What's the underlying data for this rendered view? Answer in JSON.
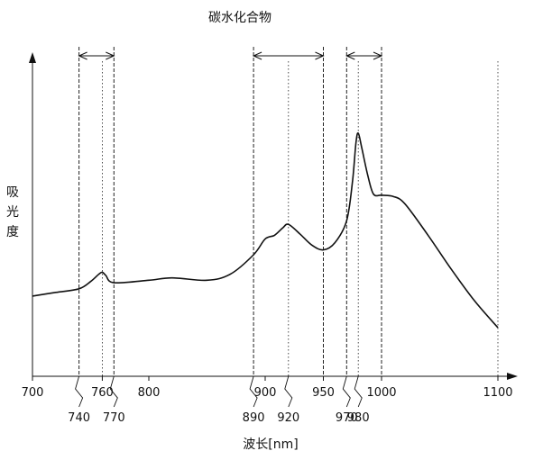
{
  "chart_data": {
    "type": "line",
    "title": "碳水化合物",
    "xlabel": "波长[nm]",
    "ylabel": "吸光度",
    "xlim": [
      700,
      1100
    ],
    "ticks_upper": [
      {
        "value": 700,
        "label": "700"
      },
      {
        "value": 760,
        "label": "760"
      },
      {
        "value": 800,
        "label": "800"
      },
      {
        "value": 900,
        "label": "900"
      },
      {
        "value": 950,
        "label": "950"
      },
      {
        "value": 1000,
        "label": "1000"
      },
      {
        "value": 1100,
        "label": "1100"
      }
    ],
    "ticks_lower": [
      {
        "value": 740,
        "label": "740"
      },
      {
        "value": 770,
        "label": "770"
      },
      {
        "value": 890,
        "label": "890"
      },
      {
        "value": 920,
        "label": "920"
      },
      {
        "value": 970,
        "label": "970"
      },
      {
        "value": 980,
        "label": "980"
      }
    ],
    "reference_lines": [
      {
        "x": 740,
        "style": "dashed"
      },
      {
        "x": 760,
        "style": "dotted"
      },
      {
        "x": 770,
        "style": "dashed"
      },
      {
        "x": 890,
        "style": "dashed"
      },
      {
        "x": 920,
        "style": "dotted"
      },
      {
        "x": 950,
        "style": "dashed"
      },
      {
        "x": 970,
        "style": "dashed"
      },
      {
        "x": 980,
        "style": "dotted"
      },
      {
        "x": 1000,
        "style": "dashed"
      },
      {
        "x": 1100,
        "style": "dotted"
      }
    ],
    "ranges": [
      {
        "from": 740,
        "to": 770
      },
      {
        "from": 890,
        "to": 950
      },
      {
        "from": 970,
        "to": 1000
      }
    ],
    "series": [
      {
        "points": [
          [
            700,
            0.33
          ],
          [
            720,
            0.345
          ],
          [
            740,
            0.36
          ],
          [
            750,
            0.39
          ],
          [
            757,
            0.42
          ],
          [
            760,
            0.428
          ],
          [
            763,
            0.415
          ],
          [
            770,
            0.385
          ],
          [
            800,
            0.395
          ],
          [
            820,
            0.405
          ],
          [
            850,
            0.395
          ],
          [
            870,
            0.42
          ],
          [
            890,
            0.5
          ],
          [
            900,
            0.565
          ],
          [
            908,
            0.58
          ],
          [
            915,
            0.61
          ],
          [
            920,
            0.625
          ],
          [
            930,
            0.585
          ],
          [
            940,
            0.54
          ],
          [
            950,
            0.52
          ],
          [
            960,
            0.55
          ],
          [
            970,
            0.64
          ],
          [
            975,
            0.8
          ],
          [
            978,
            0.96
          ],
          [
            980,
            1.0
          ],
          [
            983,
            0.94
          ],
          [
            988,
            0.83
          ],
          [
            993,
            0.75
          ],
          [
            1000,
            0.745
          ],
          [
            1010,
            0.74
          ],
          [
            1020,
            0.71
          ],
          [
            1040,
            0.58
          ],
          [
            1060,
            0.44
          ],
          [
            1080,
            0.31
          ],
          [
            1100,
            0.2
          ]
        ]
      }
    ]
  }
}
